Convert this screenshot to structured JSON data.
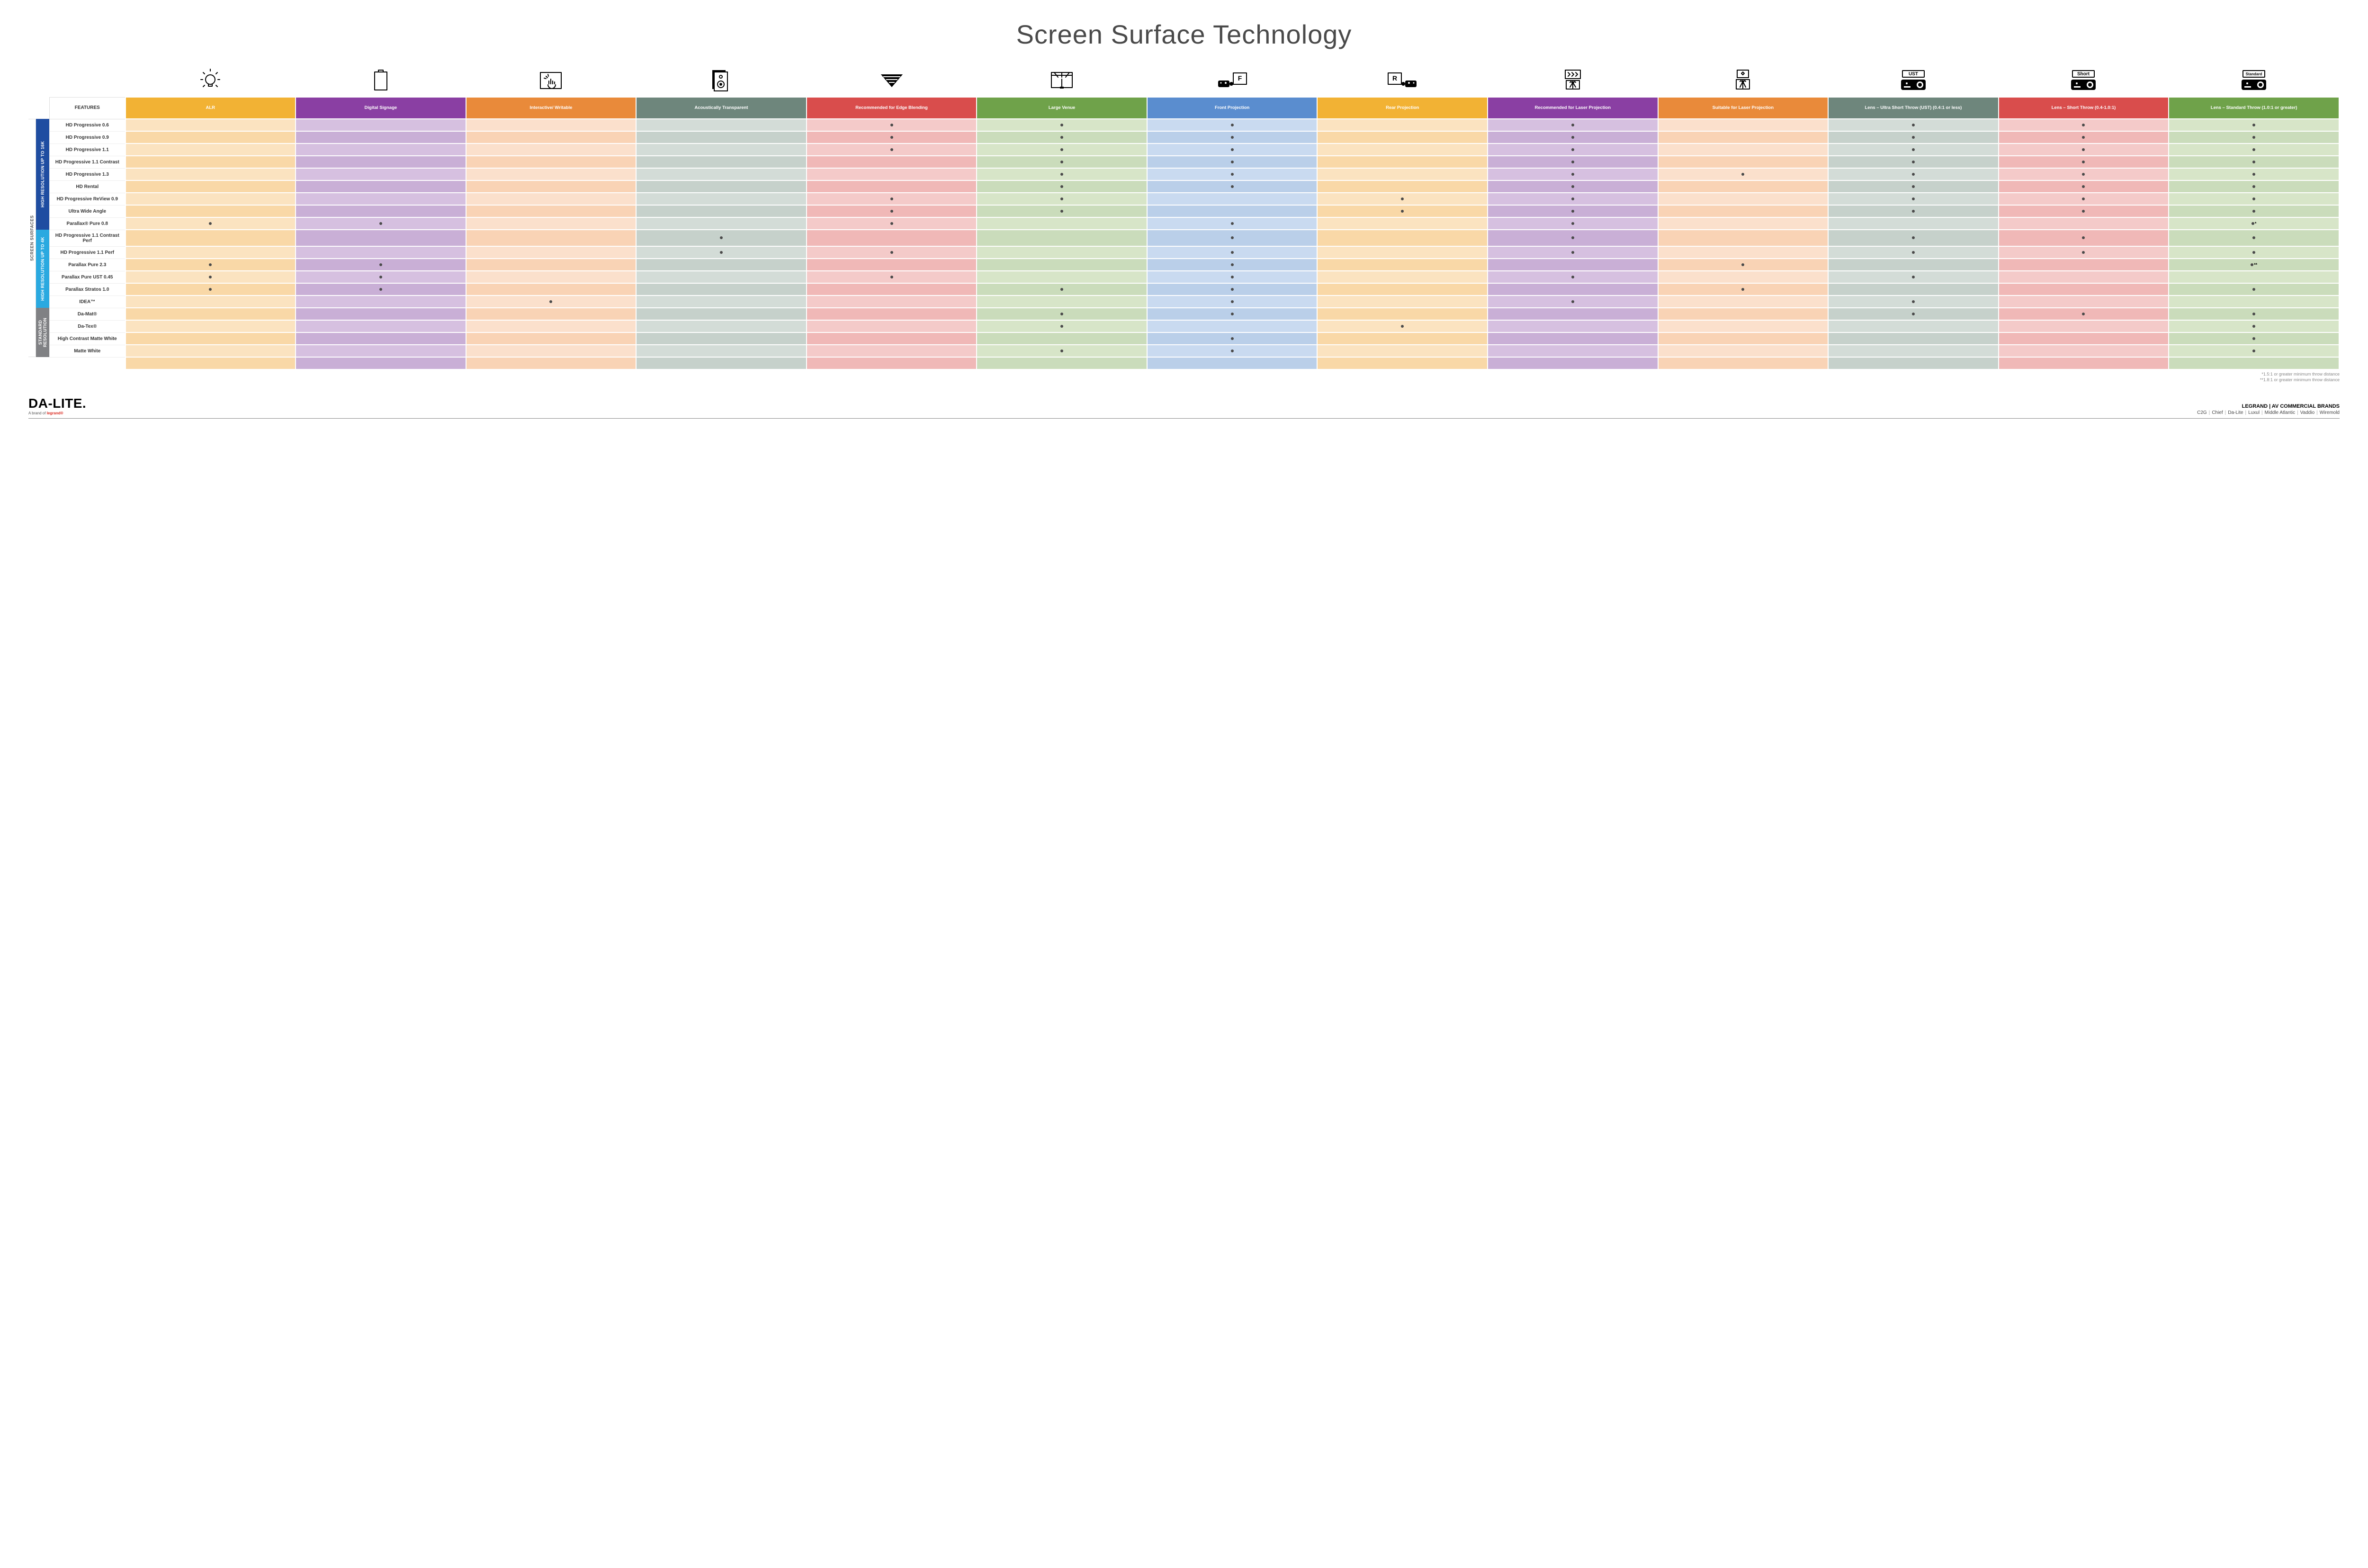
{
  "title": "Screen Surface Technology",
  "colors": {
    "group_16k": "#1f4da1",
    "group_4k": "#2aa9e0",
    "group_std": "#808184"
  },
  "columns": [
    {
      "key": "alr",
      "label": "ALR",
      "icon": "bulb",
      "hdr_bg": "#f2b234",
      "cell_bg": "#fbe3c0",
      "cell_alt": "#f9d8a7"
    },
    {
      "key": "signage",
      "label": "Digital Signage",
      "icon": "screen",
      "hdr_bg": "#8a3fa3",
      "cell_bg": "#d6c0e0",
      "cell_alt": "#c9afd6"
    },
    {
      "key": "writable",
      "label": "Interactive/ Writable",
      "icon": "touch",
      "hdr_bg": "#e98a3a",
      "cell_bg": "#fbe0cc",
      "cell_alt": "#f9d3b5"
    },
    {
      "key": "acoustic",
      "label": "Acoustically Transparent",
      "icon": "speaker",
      "hdr_bg": "#6e867c",
      "cell_bg": "#d3dcd7",
      "cell_alt": "#c6d1cb"
    },
    {
      "key": "edge",
      "label": "Recommended for Edge Blending",
      "icon": "blend",
      "hdr_bg": "#d94d4c",
      "cell_bg": "#f4cac9",
      "cell_alt": "#f0b8b7"
    },
    {
      "key": "venue",
      "label": "Large Venue",
      "icon": "venue",
      "hdr_bg": "#6fa24a",
      "cell_bg": "#d7e5c8",
      "cell_alt": "#cadcbb"
    },
    {
      "key": "front",
      "label": "Front Projection",
      "icon": "front",
      "hdr_bg": "#5a8dcf",
      "cell_bg": "#c9daf0",
      "cell_alt": "#bacfe9"
    },
    {
      "key": "rear",
      "label": "Rear Projection",
      "icon": "rear",
      "hdr_bg": "#f2b234",
      "cell_bg": "#fbe3c0",
      "cell_alt": "#f9d8a7"
    },
    {
      "key": "laser_rec",
      "label": "Recommended for Laser Projection",
      "icon": "laser1",
      "hdr_bg": "#8a3fa3",
      "cell_bg": "#d6c0e0",
      "cell_alt": "#c9afd6"
    },
    {
      "key": "laser_suit",
      "label": "Suitable for Laser Projection",
      "icon": "laser2",
      "hdr_bg": "#e98a3a",
      "cell_bg": "#fbe0cc",
      "cell_alt": "#f9d3b5"
    },
    {
      "key": "ust",
      "label": "Lens – Ultra Short Throw (UST) (0.4:1 or less)",
      "icon": "pj_ust",
      "hdr_bg": "#6e867c",
      "cell_bg": "#d3dcd7",
      "cell_alt": "#c6d1cb"
    },
    {
      "key": "short",
      "label": "Lens – Short Throw (0.4-1.0:1)",
      "icon": "pj_short",
      "hdr_bg": "#d94d4c",
      "cell_bg": "#f4cac9",
      "cell_alt": "#f0b8b7"
    },
    {
      "key": "std",
      "label": "Lens – Standard Throw (1.0:1 or greater)",
      "icon": "pj_std",
      "hdr_bg": "#6fa24a",
      "cell_bg": "#d7e5c8",
      "cell_alt": "#cadcbb"
    }
  ],
  "groups": [
    {
      "key": "g16",
      "label": "HIGH RESOLUTION UP TO 16K",
      "color_key": "group_16k",
      "rows": [
        {
          "name": "HD Progressive 0.6",
          "dots": {
            "edge": "•",
            "venue": "•",
            "front": "•",
            "laser_rec": "•",
            "ust": "•",
            "short": "•",
            "std": "•"
          }
        },
        {
          "name": "HD Progressive 0.9",
          "dots": {
            "edge": "•",
            "venue": "•",
            "front": "•",
            "laser_rec": "•",
            "ust": "•",
            "short": "•",
            "std": "•"
          }
        },
        {
          "name": "HD Progressive 1.1",
          "dots": {
            "edge": "•",
            "venue": "•",
            "front": "•",
            "laser_rec": "•",
            "ust": "•",
            "short": "•",
            "std": "•"
          }
        },
        {
          "name": "HD Progressive 1.1 Contrast",
          "dots": {
            "venue": "•",
            "front": "•",
            "laser_rec": "•",
            "ust": "•",
            "short": "•",
            "std": "•"
          }
        },
        {
          "name": "HD Progressive 1.3",
          "dots": {
            "venue": "•",
            "front": "•",
            "laser_rec": "•",
            "laser_suit": "•",
            "ust": "•",
            "short": "•",
            "std": "•"
          }
        },
        {
          "name": "HD Rental",
          "dots": {
            "venue": "•",
            "front": "•",
            "laser_rec": "•",
            "ust": "•",
            "short": "•",
            "std": "•"
          }
        },
        {
          "name": "HD Progressive ReView 0.9",
          "dots": {
            "edge": "•",
            "venue": "•",
            "rear": "•",
            "laser_rec": "•",
            "ust": "•",
            "short": "•",
            "std": "•"
          }
        },
        {
          "name": "Ultra Wide Angle",
          "dots": {
            "edge": "•",
            "venue": "•",
            "rear": "•",
            "laser_rec": "•",
            "ust": "•",
            "short": "•",
            "std": "•"
          }
        },
        {
          "name": "Parallax® Pure 0.8",
          "dots": {
            "alr": "•",
            "signage": "•",
            "edge": "•",
            "front": "•",
            "laser_rec": "•",
            "std": "•*"
          }
        }
      ]
    },
    {
      "key": "g4",
      "label": "HIGH RESOLUTION UP TO 4K",
      "color_key": "group_4k",
      "rows": [
        {
          "name": "HD Progressive 1.1 Contrast Perf",
          "dots": {
            "acoustic": "•",
            "front": "•",
            "laser_rec": "•",
            "ust": "•",
            "short": "•",
            "std": "•"
          }
        },
        {
          "name": "HD Progressive 1.1 Perf",
          "dots": {
            "acoustic": "•",
            "edge": "•",
            "front": "•",
            "laser_rec": "•",
            "ust": "•",
            "short": "•",
            "std": "•"
          }
        },
        {
          "name": "Parallax Pure 2.3",
          "dots": {
            "alr": "•",
            "signage": "•",
            "front": "•",
            "laser_suit": "•",
            "std": "•**"
          }
        },
        {
          "name": "Parallax Pure UST 0.45",
          "dots": {
            "alr": "•",
            "signage": "•",
            "edge": "•",
            "front": "•",
            "laser_rec": "•",
            "ust": "•"
          }
        },
        {
          "name": "Parallax Stratos 1.0",
          "dots": {
            "alr": "•",
            "signage": "•",
            "venue": "•",
            "front": "•",
            "laser_suit": "•",
            "std": "•"
          }
        },
        {
          "name": "IDEA™",
          "dots": {
            "writable": "•",
            "front": "•",
            "laser_rec": "•",
            "ust": "•"
          }
        }
      ]
    },
    {
      "key": "gstd",
      "label": "STANDARD RESOLUTION",
      "color_key": "group_std",
      "rows": [
        {
          "name": "Da-Mat®",
          "dots": {
            "venue": "•",
            "front": "•",
            "ust": "•",
            "short": "•",
            "std": "•"
          }
        },
        {
          "name": "Da-Tex®",
          "dots": {
            "venue": "•",
            "rear": "•",
            "std": "•"
          }
        },
        {
          "name": "High Contrast Matte White",
          "dots": {
            "front": "•",
            "std": "•"
          }
        },
        {
          "name": "Matte White",
          "dots": {
            "venue": "•",
            "front": "•",
            "std": "•"
          }
        }
      ]
    }
  ],
  "side_label": "SCREEN SURFACES",
  "features_header": "FEATURES",
  "footnotes": [
    "*1.5:1 or greater minimum throw distance",
    "**1.8:1 or greater minimum throw distance"
  ],
  "footer": {
    "logo_main": "DA-LITE.",
    "logo_sub_prefix": "A brand of ",
    "logo_sub_accent": "legrand®",
    "brands_head": "LEGRAND | AV COMMERCIAL BRANDS",
    "brands": [
      "C2G",
      "Chief",
      "Da-Lite",
      "Luxul",
      "Middle Atlantic",
      "Vaddio",
      "Wiremold"
    ]
  }
}
